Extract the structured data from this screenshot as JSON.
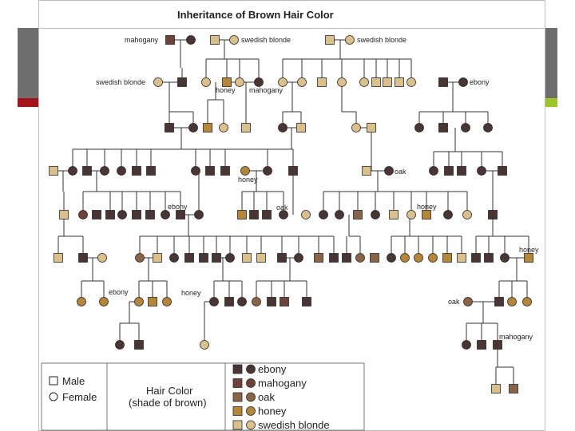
{
  "title": "Inheritance of Brown Hair Color",
  "colors": {
    "ebony": "#4a3535",
    "mahogany": "#6e4238",
    "oak": "#8a6447",
    "honey": "#b58538",
    "swedish_blonde": "#dcc08c",
    "line": "#333333",
    "accent_red": "#a3141c",
    "accent_green": "#9bc623",
    "side_gray": "#6e6e6e"
  },
  "labels": [
    {
      "text": "mahogany"
    },
    {
      "text": "swedish blonde"
    },
    {
      "text": "swedish blonde"
    },
    {
      "text": "swedish blonde"
    },
    {
      "text": "honey"
    },
    {
      "text": "mahogany"
    },
    {
      "text": "ebony"
    },
    {
      "text": "oak"
    },
    {
      "text": "honey"
    },
    {
      "text": "ebony"
    },
    {
      "text": "oak"
    },
    {
      "text": "honey"
    },
    {
      "text": "honey"
    },
    {
      "text": "ebony"
    },
    {
      "text": "honey"
    },
    {
      "text": "oak"
    },
    {
      "text": "mahogany"
    }
  ],
  "legend": {
    "male": "Male",
    "female": "Female",
    "heading_line1": "Hair Color",
    "heading_line2": "(shade of brown)",
    "shades": [
      {
        "label": "ebony",
        "color": "ebony"
      },
      {
        "label": "mahogany",
        "color": "mahogany"
      },
      {
        "label": "oak",
        "color": "oak"
      },
      {
        "label": "honey",
        "color": "honey"
      },
      {
        "label": "swedish blonde",
        "color": "swedish_blonde"
      }
    ]
  }
}
